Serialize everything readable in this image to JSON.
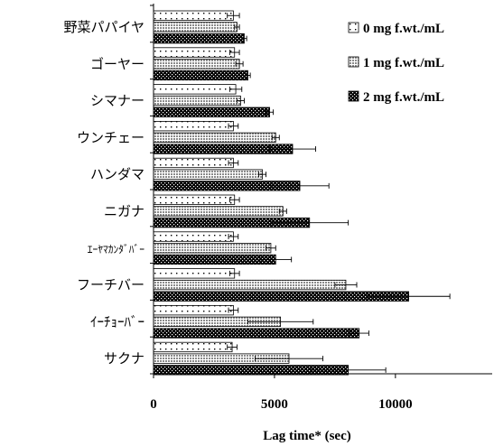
{
  "chart_data": {
    "type": "bar",
    "orientation": "horizontal",
    "categories": [
      "野菜パパイヤ",
      "ゴーヤー",
      "シマナー",
      "ウンチェー",
      "ハンダマ",
      "ニガナ",
      "ｴｰﾔﾏｶﾝﾀﾞﾊﾞｰ",
      "フーチバー",
      "ｲｰﾁｮｰﾊﾞｰ",
      "サクナ"
    ],
    "series": [
      {
        "name": "0 mg f.wt./mL",
        "pattern": "dots-light",
        "values": [
          3300,
          3350,
          3400,
          3300,
          3300,
          3350,
          3300,
          3350,
          3300,
          3250
        ],
        "errors": [
          250,
          200,
          250,
          200,
          200,
          200,
          200,
          200,
          200,
          200
        ]
      },
      {
        "name": "1 mg f.wt./mL",
        "pattern": "grid-gray",
        "values": [
          3450,
          3550,
          3600,
          5050,
          4500,
          5350,
          4850,
          7950,
          5250,
          5600
        ],
        "errors": [
          100,
          150,
          150,
          150,
          150,
          150,
          200,
          450,
          1350,
          1400
        ]
      },
      {
        "name": "2 mg f.wt./mL",
        "pattern": "checker-dark",
        "values": [
          3750,
          3900,
          4800,
          5750,
          6050,
          6450,
          5050,
          10550,
          8500,
          8050
        ],
        "errors": [
          100,
          100,
          150,
          950,
          1200,
          1600,
          650,
          1700,
          400,
          1550
        ]
      }
    ],
    "xlabel": "Lag time* (sec)",
    "ylabel": "",
    "xlim": [
      0,
      14000
    ],
    "xticks": [
      0,
      5000,
      10000
    ],
    "legend": "top-right",
    "grid": false,
    "colors": {
      "axis": "#000000",
      "bar_edge": "#000000",
      "light": "#ffffff",
      "mid": "#9a9a9a",
      "dark": "#000000"
    }
  }
}
